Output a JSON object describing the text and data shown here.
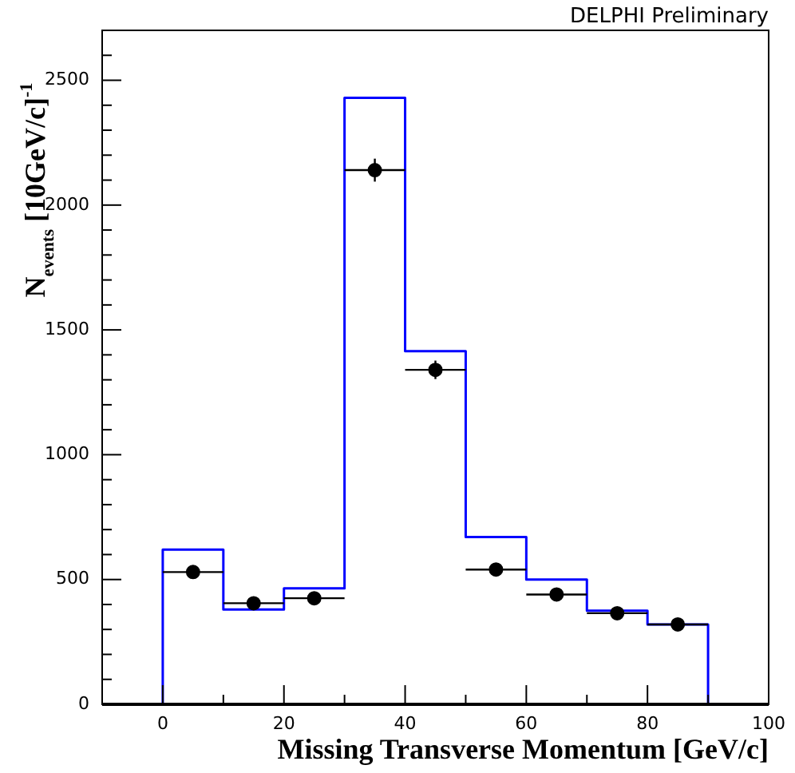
{
  "chart_data": {
    "type": "histogram",
    "xlabel": "Missing Transverse Momentum [GeV/c]",
    "ylabel": "N$_{events}$ [10GeV/c]$^{-1}$",
    "annotations": [
      "DELPHI Preliminary"
    ],
    "bins": [
      0,
      10,
      20,
      30,
      40,
      50,
      60,
      70,
      80,
      90
    ],
    "series": [
      {
        "type": "histogram",
        "color": "#0000ff",
        "values": [
          620,
          380,
          465,
          2430,
          1415,
          670,
          500,
          375,
          320
        ]
      },
      {
        "type": "scatter",
        "color": "#000000",
        "x": [
          5,
          15,
          25,
          35,
          45,
          55,
          65,
          75,
          85
        ],
        "values": [
          530,
          405,
          425,
          2140,
          1340,
          540,
          440,
          365,
          320
        ],
        "errors": [
          23,
          20,
          21,
          46,
          37,
          23,
          21,
          19,
          18
        ],
        "xerrors": [
          5,
          5,
          5,
          5,
          5,
          5,
          5,
          5,
          5
        ]
      }
    ],
    "marker": "circle",
    "grid": false,
    "legend": false,
    "xlim": [
      -10,
      100
    ],
    "xticks": [
      {
        "value": -10,
        "label": null
      },
      0,
      {
        "value": 10,
        "label": null
      },
      20,
      {
        "value": 30,
        "label": null
      },
      40,
      {
        "value": 50,
        "label": null
      },
      60,
      {
        "value": 70,
        "label": null
      },
      80,
      {
        "value": 90,
        "label": null
      },
      100
    ],
    "ylim": [
      0,
      2700
    ],
    "yticks": [
      0,
      {
        "value": 100,
        "label": null
      },
      {
        "value": 200,
        "label": null
      },
      {
        "value": 300,
        "label": null
      },
      {
        "value": 400,
        "label": null
      },
      500,
      {
        "value": 600,
        "label": null
      },
      {
        "value": 700,
        "label": null
      },
      {
        "value": 800,
        "label": null
      },
      {
        "value": 900,
        "label": null
      },
      1000,
      {
        "value": 1100,
        "label": null
      },
      {
        "value": 1200,
        "label": null
      },
      {
        "value": 1300,
        "label": null
      },
      {
        "value": 1400,
        "label": null
      },
      1500,
      {
        "value": 1600,
        "label": null
      },
      {
        "value": 1700,
        "label": null
      },
      {
        "value": 1800,
        "label": null
      },
      {
        "value": 1900,
        "label": null
      },
      2000,
      {
        "value": 2100,
        "label": null
      },
      {
        "value": 2200,
        "label": null
      },
      {
        "value": 2300,
        "label": null
      },
      {
        "value": 2400,
        "label": null
      },
      2500,
      {
        "value": 2600,
        "label": null
      }
    ]
  }
}
